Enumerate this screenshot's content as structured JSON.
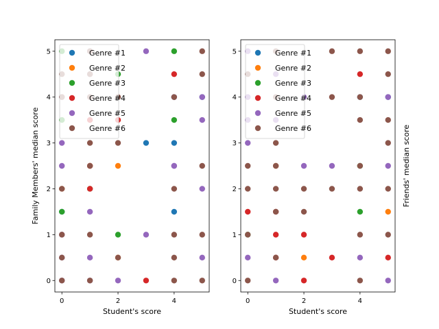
{
  "chart_data": [
    {
      "type": "scatter",
      "xlabel": "Student's score",
      "ylabel": "Family Members' median score",
      "ylabel_side": "left",
      "xlim": [
        -0.25,
        5.25
      ],
      "ylim": [
        -0.25,
        5.25
      ],
      "xticks": [
        0,
        2,
        4
      ],
      "yticks": [
        0,
        1,
        2,
        3,
        4,
        5
      ],
      "legend_position": "upper-left",
      "series": [
        {
          "name": "Genre #1",
          "color": "#1f77b4",
          "points": [
            [
              3,
              3
            ],
            [
              4,
              3
            ],
            [
              4,
              1.5
            ],
            [
              5,
              4
            ],
            [
              4,
              4
            ],
            [
              0,
              1.5
            ]
          ]
        },
        {
          "name": "Genre #2",
          "color": "#ff7f0e",
          "points": [
            [
              2,
              2.5
            ],
            [
              2,
              0.5
            ],
            [
              0,
              2
            ],
            [
              1,
              2.5
            ]
          ]
        },
        {
          "name": "Genre #3",
          "color": "#2ca02c",
          "points": [
            [
              0,
              5
            ],
            [
              0,
              3.5
            ],
            [
              0,
              1.5
            ],
            [
              2,
              4.5
            ],
            [
              2,
              1
            ],
            [
              4,
              5
            ],
            [
              4,
              3.5
            ],
            [
              1,
              2
            ]
          ]
        },
        {
          "name": "Genre #4",
          "color": "#d62728",
          "points": [
            [
              1,
              2.5
            ],
            [
              1,
              2
            ],
            [
              3,
              0
            ],
            [
              4,
              4.5
            ],
            [
              1,
              3.5
            ],
            [
              2,
              3.5
            ]
          ]
        },
        {
          "name": "Genre #5",
          "color": "#9467bd",
          "points": [
            [
              0,
              3
            ],
            [
              0,
              2.5
            ],
            [
              0,
              1
            ],
            [
              0,
              0.5
            ],
            [
              0,
              0
            ],
            [
              1,
              1.5
            ],
            [
              1,
              0.5
            ],
            [
              1,
              0
            ],
            [
              1,
              4.5
            ],
            [
              1,
              5
            ],
            [
              2,
              0
            ],
            [
              3,
              5
            ],
            [
              3,
              1
            ],
            [
              4,
              2.5
            ],
            [
              4,
              2.5
            ],
            [
              5,
              3.5
            ],
            [
              5,
              2
            ],
            [
              5,
              0.5
            ],
            [
              5,
              4
            ],
            [
              4,
              4
            ],
            [
              0,
              4
            ]
          ]
        },
        {
          "name": "Genre #6",
          "color": "#8c564b",
          "points": [
            [
              0,
              4.5
            ],
            [
              0,
              4
            ],
            [
              0,
              2
            ],
            [
              0,
              1
            ],
            [
              0,
              0.5
            ],
            [
              0,
              0
            ],
            [
              1,
              5
            ],
            [
              1,
              4
            ],
            [
              1,
              3
            ],
            [
              1,
              2.5
            ],
            [
              1,
              1
            ],
            [
              1,
              0
            ],
            [
              2,
              3
            ],
            [
              2,
              0.5
            ],
            [
              4,
              4
            ],
            [
              4,
              2
            ],
            [
              4,
              1
            ],
            [
              4,
              0.5
            ],
            [
              4,
              0
            ],
            [
              5,
              5
            ],
            [
              5,
              4.5
            ],
            [
              5,
              2.5
            ],
            [
              5,
              1
            ],
            [
              5,
              0
            ],
            [
              2,
              4
            ],
            [
              1,
              4.5
            ]
          ]
        }
      ]
    },
    {
      "type": "scatter",
      "xlabel": "Student's score",
      "ylabel": "Friends' median score",
      "ylabel_side": "right",
      "xlim": [
        -0.25,
        5.25
      ],
      "ylim": [
        -0.25,
        5.25
      ],
      "xticks": [
        0,
        2,
        4
      ],
      "yticks": [
        0,
        1,
        2,
        3,
        4,
        5
      ],
      "legend_position": "upper-left",
      "series": [
        {
          "name": "Genre #1",
          "color": "#1f77b4",
          "points": [
            [
              5,
              4
            ],
            [
              4,
              4
            ]
          ]
        },
        {
          "name": "Genre #2",
          "color": "#ff7f0e",
          "points": [
            [
              2,
              0.5
            ],
            [
              5,
              1.5
            ],
            [
              1,
              2.5
            ]
          ]
        },
        {
          "name": "Genre #3",
          "color": "#2ca02c",
          "points": [
            [
              4,
              1.5
            ],
            [
              0,
              1
            ],
            [
              4,
              2.5
            ]
          ]
        },
        {
          "name": "Genre #4",
          "color": "#d62728",
          "points": [
            [
              0,
              1.5
            ],
            [
              1,
              1.5
            ],
            [
              1,
              1
            ],
            [
              2,
              0
            ],
            [
              2,
              1
            ],
            [
              3,
              0.5
            ],
            [
              4,
              4.5
            ],
            [
              5,
              0.5
            ],
            [
              1,
              0.5
            ]
          ]
        },
        {
          "name": "Genre #5",
          "color": "#9467bd",
          "points": [
            [
              0,
              5
            ],
            [
              0,
              3
            ],
            [
              0,
              0.5
            ],
            [
              1,
              0
            ],
            [
              2,
              2.5
            ],
            [
              3,
              2.5
            ],
            [
              4,
              0.5
            ],
            [
              5,
              0
            ],
            [
              5,
              4
            ],
            [
              5,
              2.5
            ],
            [
              1,
              4.5
            ],
            [
              1,
              3.5
            ],
            [
              0,
              4
            ],
            [
              0,
              3.5
            ],
            [
              2,
              4
            ]
          ]
        },
        {
          "name": "Genre #6",
          "color": "#8c564b",
          "points": [
            [
              0,
              4.5
            ],
            [
              0,
              2.5
            ],
            [
              0,
              2
            ],
            [
              0,
              1
            ],
            [
              0,
              0
            ],
            [
              1,
              5
            ],
            [
              1,
              4
            ],
            [
              1,
              3
            ],
            [
              1,
              2.5
            ],
            [
              1,
              2
            ],
            [
              1,
              0.5
            ],
            [
              2,
              2
            ],
            [
              3,
              5
            ],
            [
              3,
              4
            ],
            [
              3,
              2
            ],
            [
              4,
              5
            ],
            [
              4,
              4
            ],
            [
              4,
              3.5
            ],
            [
              4,
              2.5
            ],
            [
              4,
              2
            ],
            [
              4,
              1
            ],
            [
              4,
              0
            ],
            [
              5,
              5
            ],
            [
              5,
              4.5
            ],
            [
              5,
              3.5
            ],
            [
              5,
              3
            ],
            [
              5,
              2
            ],
            [
              5,
              1
            ],
            [
              2,
              1.5
            ],
            [
              1,
              1.5
            ]
          ]
        }
      ]
    }
  ]
}
